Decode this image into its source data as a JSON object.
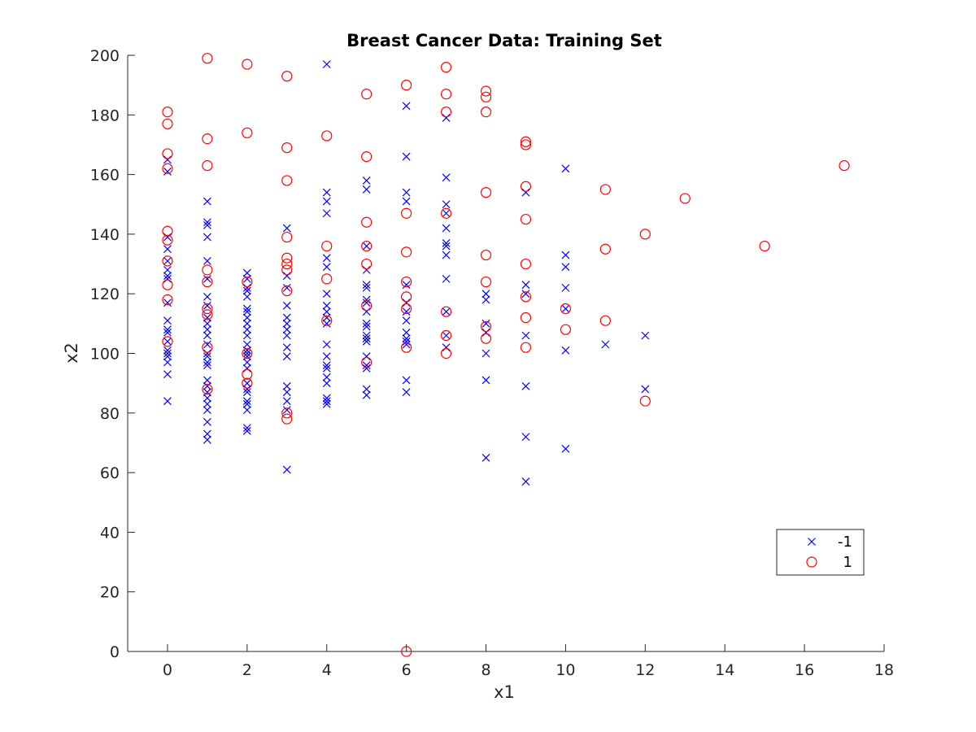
{
  "chart_data": {
    "type": "scatter",
    "title": "Breast Cancer Data: Training Set",
    "xlabel": "x1",
    "ylabel": "x2",
    "xlim": [
      -1,
      18
    ],
    "ylim": [
      0,
      200
    ],
    "xticks": [
      0,
      2,
      4,
      6,
      8,
      10,
      12,
      14,
      16,
      18
    ],
    "yticks": [
      0,
      20,
      40,
      60,
      80,
      100,
      120,
      140,
      160,
      180,
      200
    ],
    "grid": false,
    "legend_position": "bottom-right",
    "series": [
      {
        "name": "-1",
        "marker": "x",
        "color": "#0000ff",
        "points": [
          [
            0,
            165
          ],
          [
            0,
            161
          ],
          [
            0,
            139
          ],
          [
            0,
            135
          ],
          [
            0,
            131
          ],
          [
            0,
            128
          ],
          [
            0,
            126
          ],
          [
            0,
            125
          ],
          [
            0,
            117
          ],
          [
            0,
            111
          ],
          [
            0,
            108
          ],
          [
            0,
            107
          ],
          [
            0,
            104
          ],
          [
            0,
            101
          ],
          [
            0,
            100
          ],
          [
            0,
            99
          ],
          [
            0,
            97
          ],
          [
            0,
            93
          ],
          [
            0,
            84
          ],
          [
            1,
            151
          ],
          [
            1,
            144
          ],
          [
            1,
            143
          ],
          [
            1,
            139
          ],
          [
            1,
            131
          ],
          [
            1,
            125
          ],
          [
            1,
            119
          ],
          [
            1,
            116
          ],
          [
            1,
            112
          ],
          [
            1,
            110
          ],
          [
            1,
            108
          ],
          [
            1,
            106
          ],
          [
            1,
            103
          ],
          [
            1,
            100
          ],
          [
            1,
            99
          ],
          [
            1,
            97
          ],
          [
            1,
            96
          ],
          [
            1,
            91
          ],
          [
            1,
            89
          ],
          [
            1,
            87
          ],
          [
            1,
            85
          ],
          [
            1,
            83
          ],
          [
            1,
            81
          ],
          [
            1,
            77
          ],
          [
            1,
            73
          ],
          [
            1,
            71
          ],
          [
            2,
            127
          ],
          [
            2,
            125
          ],
          [
            2,
            122
          ],
          [
            2,
            121
          ],
          [
            2,
            119
          ],
          [
            2,
            115
          ],
          [
            2,
            114
          ],
          [
            2,
            112
          ],
          [
            2,
            110
          ],
          [
            2,
            108
          ],
          [
            2,
            106
          ],
          [
            2,
            103
          ],
          [
            2,
            101
          ],
          [
            2,
            100
          ],
          [
            2,
            99
          ],
          [
            2,
            97
          ],
          [
            2,
            95
          ],
          [
            2,
            90
          ],
          [
            2,
            88
          ],
          [
            2,
            87
          ],
          [
            2,
            84
          ],
          [
            2,
            83
          ],
          [
            2,
            81
          ],
          [
            2,
            75
          ],
          [
            2,
            74
          ],
          [
            3,
            142
          ],
          [
            3,
            126
          ],
          [
            3,
            122
          ],
          [
            3,
            116
          ],
          [
            3,
            112
          ],
          [
            3,
            110
          ],
          [
            3,
            108
          ],
          [
            3,
            106
          ],
          [
            3,
            102
          ],
          [
            3,
            99
          ],
          [
            3,
            89
          ],
          [
            3,
            87
          ],
          [
            3,
            84
          ],
          [
            3,
            81
          ],
          [
            3,
            61
          ],
          [
            4,
            197
          ],
          [
            4,
            154
          ],
          [
            4,
            151
          ],
          [
            4,
            147
          ],
          [
            4,
            132
          ],
          [
            4,
            129
          ],
          [
            4,
            120
          ],
          [
            4,
            116
          ],
          [
            4,
            114
          ],
          [
            4,
            112
          ],
          [
            4,
            110
          ],
          [
            4,
            103
          ],
          [
            4,
            99
          ],
          [
            4,
            96
          ],
          [
            4,
            95
          ],
          [
            4,
            92
          ],
          [
            4,
            90
          ],
          [
            4,
            85
          ],
          [
            4,
            84
          ],
          [
            4,
            83
          ],
          [
            5,
            158
          ],
          [
            5,
            155
          ],
          [
            5,
            136
          ],
          [
            5,
            128
          ],
          [
            5,
            123
          ],
          [
            5,
            122
          ],
          [
            5,
            118
          ],
          [
            5,
            117
          ],
          [
            5,
            114
          ],
          [
            5,
            110
          ],
          [
            5,
            109
          ],
          [
            5,
            106
          ],
          [
            5,
            105
          ],
          [
            5,
            104
          ],
          [
            5,
            99
          ],
          [
            5,
            96
          ],
          [
            5,
            95
          ],
          [
            5,
            88
          ],
          [
            5,
            86
          ],
          [
            6,
            183
          ],
          [
            6,
            166
          ],
          [
            6,
            154
          ],
          [
            6,
            151
          ],
          [
            6,
            123
          ],
          [
            6,
            117
          ],
          [
            6,
            114
          ],
          [
            6,
            111
          ],
          [
            6,
            107
          ],
          [
            6,
            105
          ],
          [
            6,
            104
          ],
          [
            6,
            103
          ],
          [
            6,
            91
          ],
          [
            6,
            87
          ],
          [
            7,
            179
          ],
          [
            7,
            159
          ],
          [
            7,
            150
          ],
          [
            7,
            147
          ],
          [
            7,
            142
          ],
          [
            7,
            137
          ],
          [
            7,
            136
          ],
          [
            7,
            133
          ],
          [
            7,
            125
          ],
          [
            7,
            114
          ],
          [
            7,
            106
          ],
          [
            7,
            102
          ],
          [
            8,
            120
          ],
          [
            8,
            118
          ],
          [
            8,
            110
          ],
          [
            8,
            107
          ],
          [
            8,
            100
          ],
          [
            8,
            91
          ],
          [
            8,
            65
          ],
          [
            9,
            154
          ],
          [
            9,
            123
          ],
          [
            9,
            120
          ],
          [
            9,
            106
          ],
          [
            9,
            89
          ],
          [
            9,
            72
          ],
          [
            9,
            57
          ],
          [
            10,
            162
          ],
          [
            10,
            133
          ],
          [
            10,
            129
          ],
          [
            10,
            122
          ],
          [
            10,
            115
          ],
          [
            10,
            101
          ],
          [
            10,
            68
          ],
          [
            11,
            103
          ],
          [
            12,
            106
          ],
          [
            12,
            88
          ]
        ]
      },
      {
        "name": "1",
        "marker": "o",
        "color": "#ff0000",
        "points": [
          [
            0,
            181
          ],
          [
            0,
            177
          ],
          [
            0,
            167
          ],
          [
            0,
            162
          ],
          [
            0,
            141
          ],
          [
            0,
            138
          ],
          [
            0,
            131
          ],
          [
            0,
            123
          ],
          [
            0,
            118
          ],
          [
            0,
            104
          ],
          [
            1,
            199
          ],
          [
            1,
            172
          ],
          [
            1,
            163
          ],
          [
            1,
            128
          ],
          [
            1,
            124
          ],
          [
            1,
            115
          ],
          [
            1,
            113
          ],
          [
            1,
            102
          ],
          [
            1,
            88
          ],
          [
            2,
            197
          ],
          [
            2,
            174
          ],
          [
            2,
            124
          ],
          [
            2,
            100
          ],
          [
            2,
            93
          ],
          [
            2,
            90
          ],
          [
            3,
            193
          ],
          [
            3,
            169
          ],
          [
            3,
            158
          ],
          [
            3,
            139
          ],
          [
            3,
            132
          ],
          [
            3,
            130
          ],
          [
            3,
            128
          ],
          [
            3,
            121
          ],
          [
            3,
            80
          ],
          [
            3,
            78
          ],
          [
            4,
            173
          ],
          [
            4,
            136
          ],
          [
            4,
            125
          ],
          [
            4,
            111
          ],
          [
            5,
            187
          ],
          [
            5,
            166
          ],
          [
            5,
            144
          ],
          [
            5,
            136
          ],
          [
            5,
            130
          ],
          [
            5,
            116
          ],
          [
            5,
            97
          ],
          [
            6,
            190
          ],
          [
            6,
            147
          ],
          [
            6,
            134
          ],
          [
            6,
            124
          ],
          [
            6,
            119
          ],
          [
            6,
            115
          ],
          [
            6,
            102
          ],
          [
            6,
            0
          ],
          [
            7,
            196
          ],
          [
            7,
            187
          ],
          [
            7,
            181
          ],
          [
            7,
            147
          ],
          [
            7,
            114
          ],
          [
            7,
            106
          ],
          [
            7,
            100
          ],
          [
            8,
            188
          ],
          [
            8,
            186
          ],
          [
            8,
            181
          ],
          [
            8,
            154
          ],
          [
            8,
            133
          ],
          [
            8,
            124
          ],
          [
            8,
            109
          ],
          [
            8,
            105
          ],
          [
            9,
            171
          ],
          [
            9,
            170
          ],
          [
            9,
            156
          ],
          [
            9,
            145
          ],
          [
            9,
            130
          ],
          [
            9,
            119
          ],
          [
            9,
            112
          ],
          [
            9,
            102
          ],
          [
            10,
            115
          ],
          [
            10,
            108
          ],
          [
            11,
            155
          ],
          [
            11,
            135
          ],
          [
            11,
            111
          ],
          [
            12,
            140
          ],
          [
            12,
            84
          ],
          [
            13,
            152
          ],
          [
            15,
            136
          ],
          [
            17,
            163
          ]
        ]
      }
    ]
  }
}
